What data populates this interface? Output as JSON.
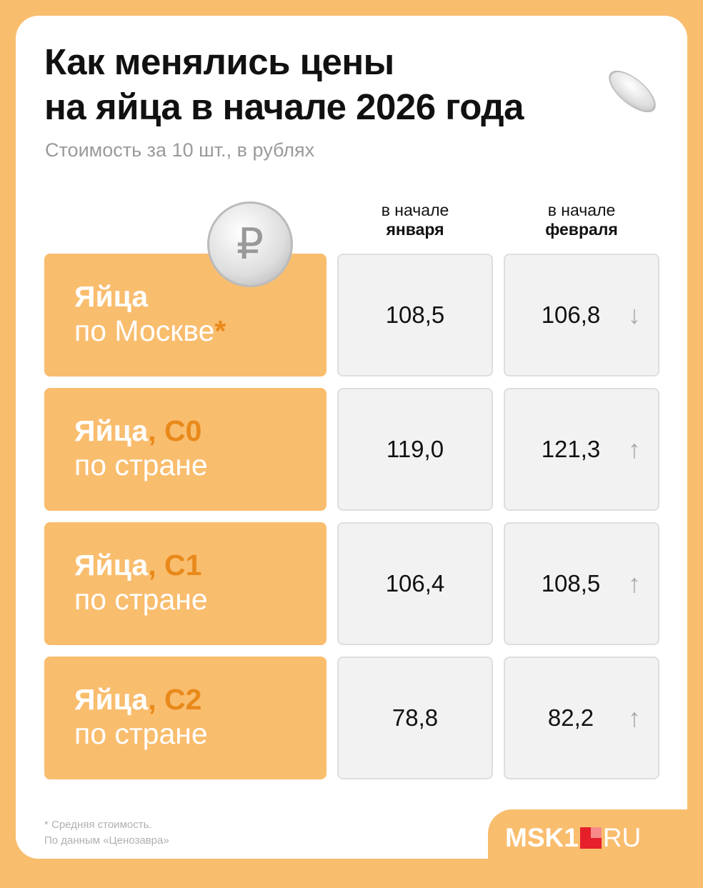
{
  "title_line1": "Как менялись цены",
  "title_line2": "на яйца в начале 2026 года",
  "subtitle": "Стоимость за 10 шт., в рублях",
  "columns": [
    {
      "top": "в начале",
      "bottom": "января"
    },
    {
      "top": "в начале",
      "bottom": "февраля"
    }
  ],
  "rows": [
    {
      "bold": "Яйца",
      "accent": "",
      "line2": "по Москве",
      "mark": "*",
      "jan": "108,5",
      "feb": "106,8",
      "trend": "↓"
    },
    {
      "bold": "Яйца",
      "accent": ", С0",
      "line2": "по стране",
      "mark": "",
      "jan": "119,0",
      "feb": "121,3",
      "trend": "↑"
    },
    {
      "bold": "Яйца",
      "accent": ", С1",
      "line2": "по стране",
      "mark": "",
      "jan": "106,4",
      "feb": "108,5",
      "trend": "↑"
    },
    {
      "bold": "Яйца",
      "accent": ", С2",
      "line2": "по стране",
      "mark": "",
      "jan": "78,8",
      "feb": "82,2",
      "trend": "↑"
    }
  ],
  "footnote": "* Средняя стоимость.",
  "source": "По данным «Ценозавра»",
  "logo": {
    "left": "MSK1",
    "right": "RU"
  },
  "colors": {
    "background": "#F9BD6E",
    "accent": "#E8891A",
    "cell": "#F2F2F2"
  }
}
